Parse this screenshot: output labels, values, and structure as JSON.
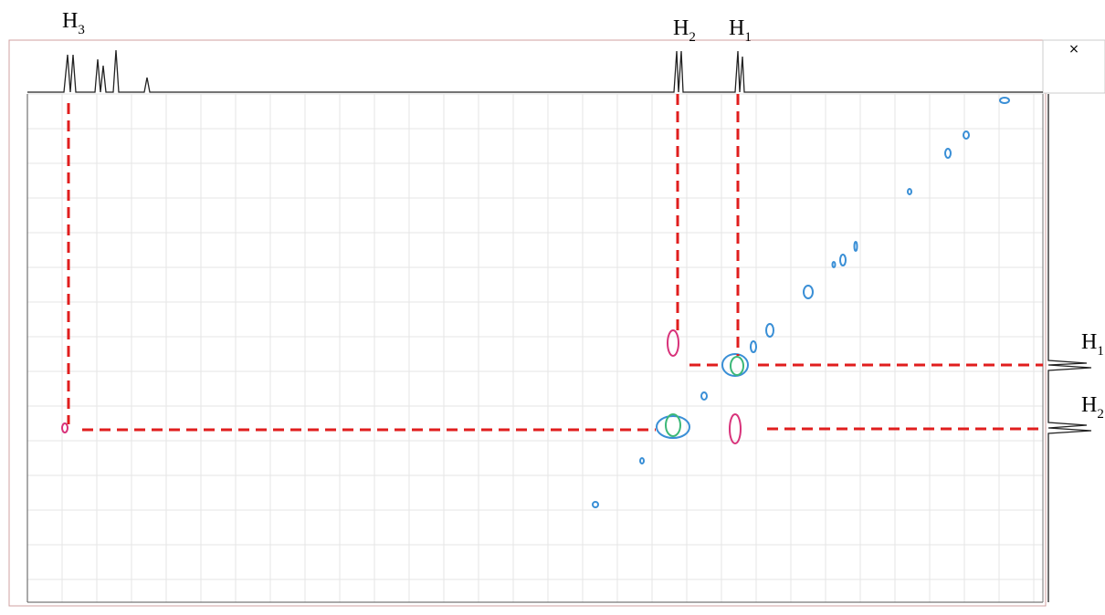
{
  "labels": {
    "top": [
      {
        "text": "H",
        "sub": "3"
      },
      {
        "text": "H",
        "sub": "2"
      },
      {
        "text": "H",
        "sub": "1"
      }
    ],
    "right": [
      {
        "text": "H",
        "sub": "1"
      },
      {
        "text": "H",
        "sub": "2"
      }
    ]
  },
  "close_button": "×"
}
